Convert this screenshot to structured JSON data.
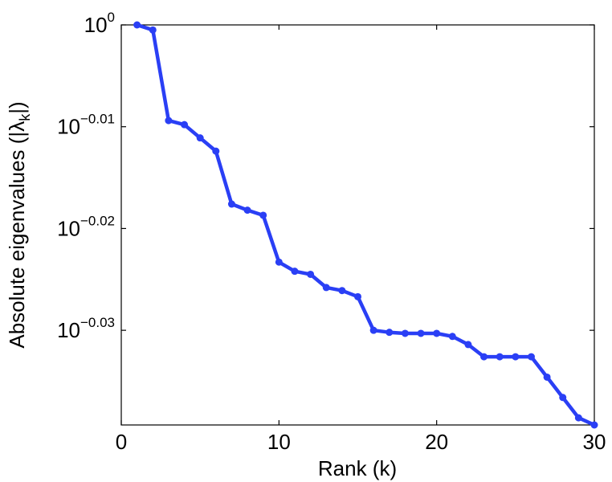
{
  "chart_data": {
    "type": "line",
    "title": "",
    "xlabel": "Rank (k)",
    "ylabel": {
      "main": "Absolute eigenvalues (|λ",
      "sub": "k",
      "tail": "|)"
    },
    "xlim": [
      0,
      30
    ],
    "ylim_log10": [
      -0.0393,
      0
    ],
    "y_scale": "log",
    "grid": false,
    "x_ticks": [
      {
        "value": 0,
        "label": "0"
      },
      {
        "value": 10,
        "label": "10"
      },
      {
        "value": 20,
        "label": "20"
      },
      {
        "value": 30,
        "label": "30"
      }
    ],
    "y_ticks": [
      {
        "log10": 0,
        "base": "10",
        "exp": "0"
      },
      {
        "log10": -0.01,
        "base": "10",
        "exp": "−0.01"
      },
      {
        "log10": -0.02,
        "base": "10",
        "exp": "−0.02"
      },
      {
        "log10": -0.03,
        "base": "10",
        "exp": "−0.03"
      }
    ],
    "series": [
      {
        "color": "#2a3ff5",
        "x": [
          1,
          2,
          3,
          4,
          5,
          6,
          7,
          8,
          9,
          10,
          11,
          12,
          13,
          14,
          15,
          16,
          17,
          18,
          19,
          20,
          21,
          22,
          23,
          24,
          25,
          26,
          27,
          28,
          29,
          30
        ],
        "log10_y": [
          0,
          -0.0005,
          -0.0094,
          -0.0098,
          -0.0111,
          -0.0124,
          -0.0176,
          -0.0182,
          -0.0187,
          -0.0233,
          -0.0242,
          -0.0245,
          -0.0258,
          -0.0261,
          -0.0267,
          -0.03,
          -0.0302,
          -0.0303,
          -0.0303,
          -0.0303,
          -0.0306,
          -0.0314,
          -0.0326,
          -0.0326,
          -0.0326,
          -0.0326,
          -0.0346,
          -0.0366,
          -0.0386,
          -0.0393
        ]
      }
    ]
  }
}
